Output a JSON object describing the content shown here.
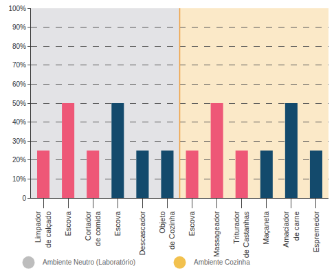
{
  "chart_data": {
    "type": "bar",
    "groups": [
      {
        "label": "Ambiente Neutro (Laboratório)",
        "color": "#e3e3e6",
        "categories": [
          "Limpador de calçado",
          "Escova",
          "Cortador de comida",
          "Escova",
          "Descascador",
          "Objeto de Cozinha"
        ],
        "values": [
          25,
          50,
          25,
          50,
          25,
          25
        ],
        "colors": [
          "#ee5777",
          "#ee5777",
          "#ee5777",
          "#134a6c",
          "#134a6c",
          "#134a6c"
        ]
      },
      {
        "label": "Ambiente Cozinha",
        "color": "#fbe9c8",
        "categories": [
          "Escova",
          "Massageador",
          "Triturador de Castanhas",
          "Maçaneta",
          "Amaciador de carne",
          "Espremedor"
        ],
        "values": [
          25,
          50,
          25,
          25,
          50,
          25
        ],
        "colors": [
          "#ee5777",
          "#ee5777",
          "#ee5777",
          "#134a6c",
          "#134a6c",
          "#134a6c"
        ]
      }
    ],
    "ylim": [
      0,
      100
    ],
    "yticks": [
      0,
      {
        "value": 10,
        "label": "10%"
      },
      {
        "value": 20,
        "label": "20%"
      },
      {
        "value": 30,
        "label": "30%"
      },
      {
        "value": 40,
        "label": "40%"
      },
      {
        "value": 50,
        "label": "50%"
      },
      {
        "value": 60,
        "label": "60%"
      },
      {
        "value": 70,
        "label": "70%"
      },
      {
        "value": 80,
        "label": "80%"
      },
      {
        "value": 90,
        "label": "90%"
      },
      {
        "value": 100,
        "label": "100%"
      }
    ],
    "grid": true
  }
}
